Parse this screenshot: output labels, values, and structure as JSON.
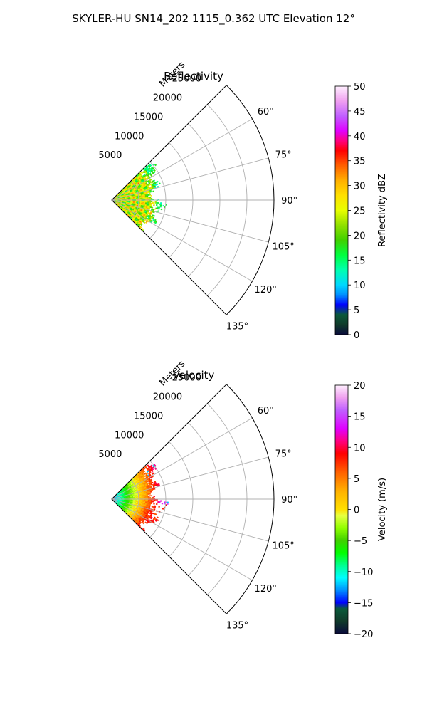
{
  "figure": {
    "suptitle": "SKYLER-HU  SN14_202  1115_0.362 UTC Elevation 12°"
  },
  "chart_data": [
    {
      "type": "heatmap",
      "projection": "polar-sector",
      "title": "Reflectivity",
      "radial_label": "Meters",
      "radial_ticks": [
        5000,
        10000,
        15000,
        20000,
        25000
      ],
      "radial_range": [
        0,
        30000
      ],
      "angle_range_deg": [
        45,
        135
      ],
      "angle_tick_labels": [
        "60°",
        "75°",
        "90°",
        "105°",
        "120°",
        "135°"
      ],
      "angle_ticks": [
        60,
        75,
        90,
        105,
        120,
        135
      ],
      "grid": true,
      "data_extent_m": 10500,
      "colorbar": {
        "label": "Reflectivity dBZ",
        "range": [
          0,
          50
        ],
        "ticks": [
          "0",
          "5",
          "10",
          "15",
          "20",
          "25",
          "30",
          "35",
          "40",
          "45",
          "50"
        ],
        "stops": [
          [
            0,
            "#0a0a3c"
          ],
          [
            2,
            "#103a2a"
          ],
          [
            4,
            "#0a5a3a"
          ],
          [
            6,
            "#0000ff"
          ],
          [
            8,
            "#0090ff"
          ],
          [
            10,
            "#00d8ff"
          ],
          [
            13,
            "#00ffb0"
          ],
          [
            16,
            "#00ff40"
          ],
          [
            19,
            "#40d000"
          ],
          [
            22,
            "#90e000"
          ],
          [
            25,
            "#e8ff00"
          ],
          [
            28,
            "#ffe000"
          ],
          [
            31,
            "#ffb000"
          ],
          [
            34,
            "#ff6000"
          ],
          [
            37,
            "#ff0000"
          ],
          [
            39,
            "#ff0080"
          ],
          [
            41,
            "#e000ff"
          ],
          [
            44,
            "#c060ff"
          ],
          [
            47,
            "#f0a0f0"
          ],
          [
            50,
            "#fff0ff"
          ]
        ]
      }
    },
    {
      "type": "heatmap",
      "projection": "polar-sector",
      "title": "Velocity",
      "radial_label": "Meters",
      "radial_ticks": [
        5000,
        10000,
        15000,
        20000,
        25000
      ],
      "radial_range": [
        0,
        30000
      ],
      "angle_range_deg": [
        45,
        135
      ],
      "angle_tick_labels": [
        "60°",
        "75°",
        "90°",
        "105°",
        "120°",
        "135°"
      ],
      "angle_ticks": [
        60,
        75,
        90,
        105,
        120,
        135
      ],
      "grid": true,
      "data_extent_m": 10500,
      "colorbar": {
        "label": "Velocity (m/s)",
        "range": [
          -20,
          20
        ],
        "ticks": [
          "−20",
          "−15",
          "−10",
          "−5",
          "0",
          "5",
          "10",
          "15",
          "20"
        ],
        "stops": [
          [
            -20,
            "#0a0a3c"
          ],
          [
            -18,
            "#103a2a"
          ],
          [
            -16,
            "#0a5a3a"
          ],
          [
            -15,
            "#0000ff"
          ],
          [
            -13,
            "#0090ff"
          ],
          [
            -11,
            "#00ffff"
          ],
          [
            -9,
            "#00ff90"
          ],
          [
            -7,
            "#00ff00"
          ],
          [
            -5,
            "#40d000"
          ],
          [
            -3,
            "#90ff00"
          ],
          [
            -1,
            "#e8ff40"
          ],
          [
            0,
            "#ffe000"
          ],
          [
            3,
            "#ffb000"
          ],
          [
            6,
            "#ff6000"
          ],
          [
            9,
            "#ff0000"
          ],
          [
            11,
            "#ff0080"
          ],
          [
            13,
            "#e000ff"
          ],
          [
            16,
            "#c060ff"
          ],
          [
            18,
            "#f0a0f0"
          ],
          [
            20,
            "#fff0ff"
          ]
        ]
      }
    }
  ]
}
